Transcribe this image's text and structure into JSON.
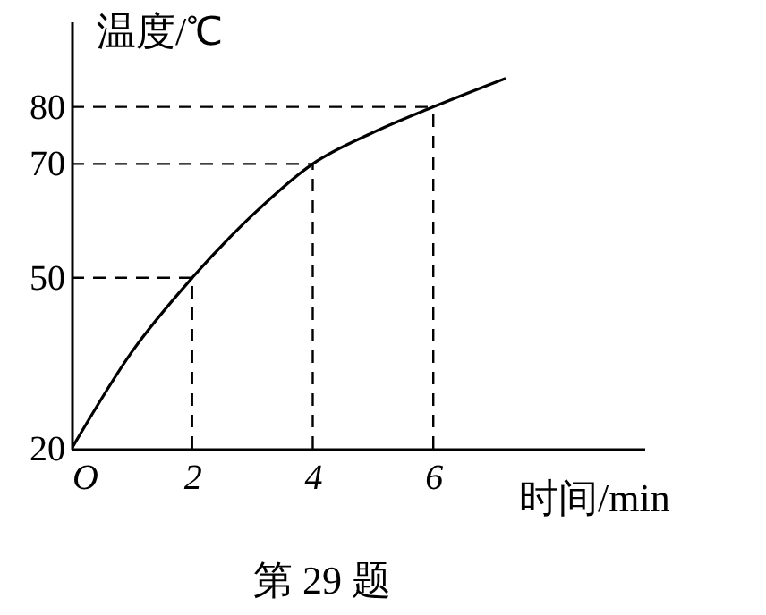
{
  "chart_data": {
    "type": "line",
    "xlabel": "时间/min",
    "ylabel": "温度/℃",
    "annotations": [
      "第 29 题"
    ],
    "x": [
      0,
      1,
      2,
      3,
      4,
      5,
      6,
      7.2
    ],
    "series": [
      {
        "color": "#000000",
        "values": [
          20,
          37,
          50,
          61,
          70,
          75.5,
          80,
          85
        ]
      }
    ],
    "xlim": [
      0,
      9.5
    ],
    "ylim": [
      20,
      95
    ],
    "xticks": [
      {
        "value": 0,
        "label": "O"
      },
      2,
      4,
      6
    ],
    "yticks": [
      20,
      50,
      70,
      80
    ],
    "ref_lines": [
      {
        "axis": "y",
        "value": 50,
        "line_style": "dashed"
      },
      {
        "axis": "y",
        "value": 70,
        "line_style": "dashed"
      },
      {
        "axis": "y",
        "value": 80,
        "line_style": "dashed"
      },
      {
        "axis": "x",
        "value": 2,
        "line_style": "dashed"
      },
      {
        "axis": "x",
        "value": 4,
        "line_style": "dashed"
      },
      {
        "axis": "x",
        "value": 6,
        "line_style": "dashed"
      }
    ],
    "grid": false,
    "marker": "none",
    "line_style": "solid"
  }
}
